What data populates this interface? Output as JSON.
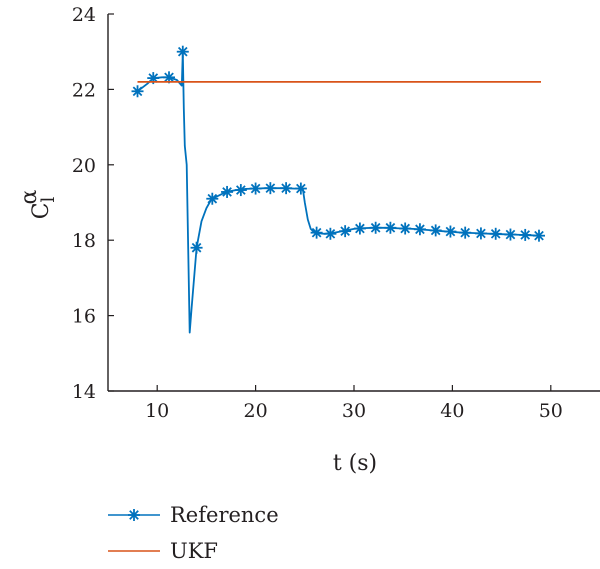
{
  "chart_data": {
    "type": "line",
    "xlabel": "t (s)",
    "ylabel_main": "C",
    "ylabel_sub": "l",
    "ylabel_sup": "α",
    "xlim": [
      5,
      55
    ],
    "ylim": [
      14,
      24
    ],
    "xticks": [
      10,
      20,
      30,
      40,
      50
    ],
    "yticks": [
      14,
      16,
      18,
      20,
      22,
      24
    ],
    "grid": false,
    "legend_position": "bottom-left",
    "series": [
      {
        "name": "Reference",
        "color": "#0072bd",
        "marker": "asterisk",
        "x": [
          8.0,
          9.0,
          9.6,
          10.5,
          11.2,
          12.0,
          12.5,
          12.6,
          12.7,
          12.8,
          13.0,
          13.3,
          13.5,
          14.0,
          14.5,
          15.0,
          15.5,
          16.0,
          17.0,
          18.0,
          19.0,
          20.0,
          21.0,
          22.0,
          23.0,
          24.0,
          24.8,
          25.0,
          25.3,
          25.6,
          26.0,
          26.5,
          27.0,
          28.0,
          29.0,
          30.0,
          31.0,
          32.0,
          33.0,
          34.0,
          35.0,
          36.0,
          37.0,
          38.0,
          39.0,
          40.0,
          41.0,
          42.0,
          43.0,
          44.0,
          45.0,
          46.0,
          47.0,
          48.0,
          48.8
        ],
        "y": [
          21.95,
          22.15,
          22.3,
          22.32,
          22.32,
          22.25,
          22.1,
          23.0,
          21.5,
          20.5,
          20.0,
          15.55,
          16.2,
          17.8,
          18.5,
          18.85,
          19.08,
          19.15,
          19.28,
          19.33,
          19.36,
          19.37,
          19.38,
          19.38,
          19.38,
          19.37,
          19.37,
          19.0,
          18.55,
          18.3,
          18.2,
          18.18,
          18.17,
          18.2,
          18.25,
          18.3,
          18.32,
          18.33,
          18.33,
          18.32,
          18.31,
          18.3,
          18.28,
          18.26,
          18.24,
          18.22,
          18.2,
          18.19,
          18.18,
          18.17,
          18.16,
          18.15,
          18.14,
          18.13,
          18.12
        ],
        "marker_points": [
          [
            8.0,
            21.95
          ],
          [
            9.6,
            22.3
          ],
          [
            11.2,
            22.32
          ],
          [
            12.6,
            23.0
          ],
          [
            14.0,
            17.8
          ],
          [
            15.6,
            19.1
          ],
          [
            17.1,
            19.28
          ],
          [
            18.5,
            19.33
          ],
          [
            20.0,
            19.37
          ],
          [
            21.5,
            19.38
          ],
          [
            23.1,
            19.38
          ],
          [
            24.6,
            19.37
          ],
          [
            26.2,
            18.2
          ],
          [
            27.6,
            18.17
          ],
          [
            29.1,
            18.24
          ],
          [
            30.6,
            18.31
          ],
          [
            32.2,
            18.33
          ],
          [
            33.7,
            18.33
          ],
          [
            35.2,
            18.31
          ],
          [
            36.7,
            18.29
          ],
          [
            38.3,
            18.26
          ],
          [
            39.8,
            18.23
          ],
          [
            41.3,
            18.2
          ],
          [
            42.9,
            18.18
          ],
          [
            44.4,
            18.17
          ],
          [
            45.9,
            18.15
          ],
          [
            47.4,
            18.14
          ],
          [
            48.8,
            18.12
          ]
        ]
      },
      {
        "name": "UKF",
        "color": "#d95319",
        "marker": "none",
        "x": [
          8.0,
          49.0
        ],
        "y": [
          22.2,
          22.2
        ]
      }
    ]
  }
}
